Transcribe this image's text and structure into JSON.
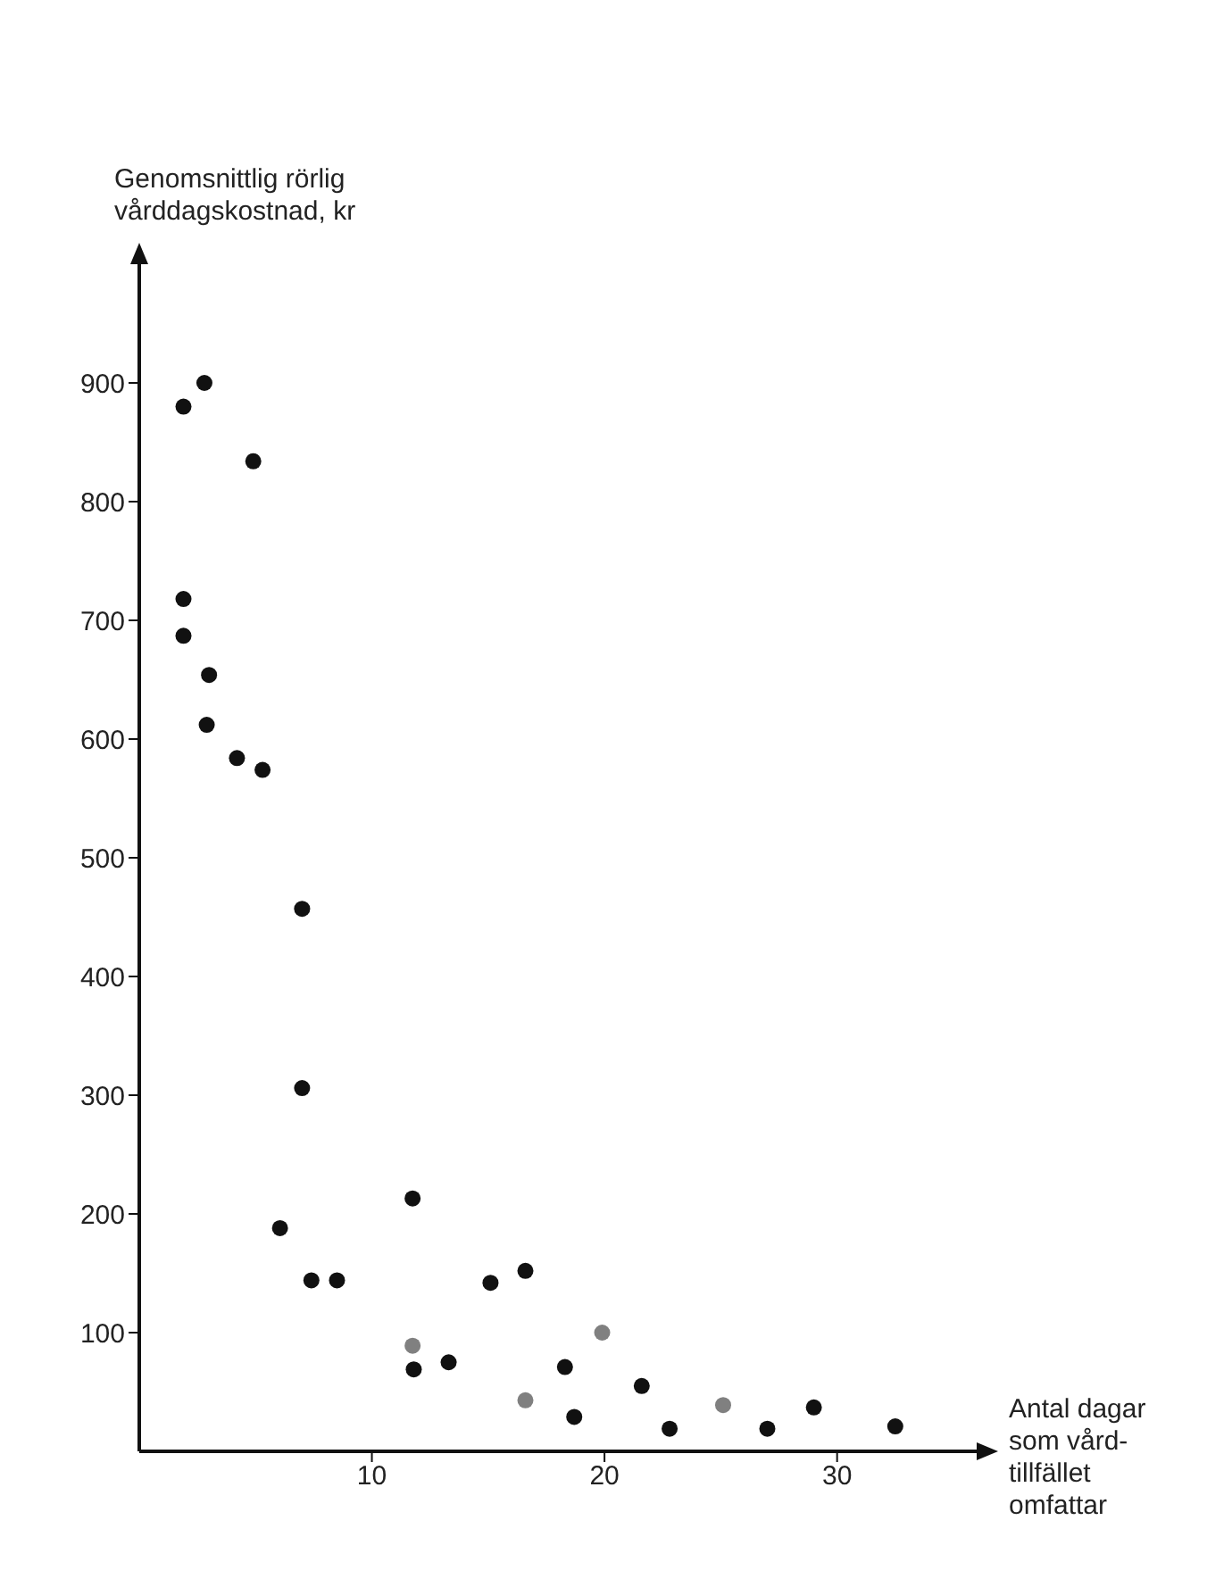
{
  "chart_data": {
    "type": "scatter",
    "xlabel": "Antal dagar\nsom vård-\ntillfället\nomfattar",
    "ylabel": "Genomsnittlig rörlig\nvårddagskostnad, kr",
    "xlim": [
      0,
      36
    ],
    "xticks": [
      10,
      20,
      30
    ],
    "ylim": [
      0,
      1000
    ],
    "yticks": [
      100,
      200,
      300,
      400,
      500,
      600,
      700,
      800,
      900
    ],
    "grid": false,
    "legend": false,
    "marker": "circle",
    "series": [
      {
        "color": "#111111",
        "x": [
          1.9,
          2.8,
          4.9,
          1.9,
          1.9,
          3.0,
          2.9,
          4.2,
          5.3,
          7.0,
          7.0,
          6.05,
          7.4,
          8.5,
          11.75,
          11.8,
          13.3,
          15.1,
          16.6,
          18.3,
          18.7,
          21.6,
          22.8,
          27.0,
          29.0,
          32.5
        ],
        "values": [
          880,
          900,
          834,
          718,
          687,
          654,
          612,
          584,
          574,
          457,
          306,
          188,
          144,
          144,
          213,
          69,
          75,
          142,
          152,
          71,
          29,
          55,
          19,
          19,
          37,
          21
        ]
      },
      {
        "color": "#808080",
        "x": [
          11.75,
          16.6,
          19.9,
          25.1
        ],
        "values": [
          89,
          43,
          100,
          39
        ]
      }
    ]
  }
}
